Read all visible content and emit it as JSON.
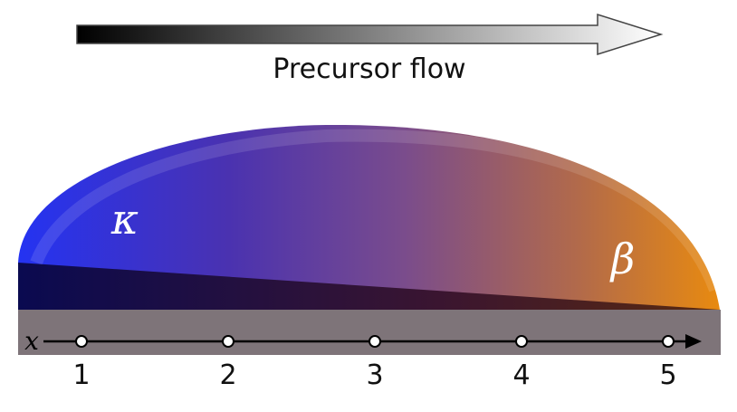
{
  "header": {
    "label": "Precursor flow"
  },
  "regions": [
    {
      "label": "κ"
    },
    {
      "label": "β"
    }
  ],
  "axis": {
    "label": "x",
    "positions": [
      "1",
      "2",
      "3",
      "4",
      "5"
    ]
  }
}
